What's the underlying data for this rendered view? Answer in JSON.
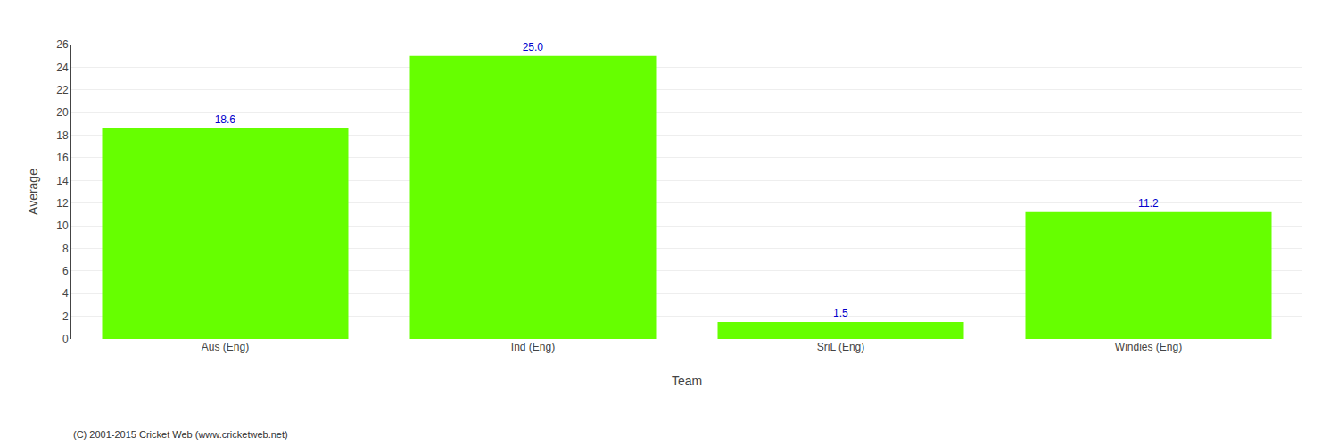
{
  "chart_data": {
    "type": "bar",
    "xlabel": "Team",
    "ylabel": "Average",
    "categories": [
      "Aus (Eng)",
      "Ind (Eng)",
      "SriL (Eng)",
      "Windies (Eng)"
    ],
    "values": [
      18.6,
      25.0,
      1.5,
      11.2
    ],
    "value_labels": [
      "18.6",
      "25.0",
      "1.5",
      "11.2"
    ],
    "data_labels": true,
    "color": "#66ff00",
    "ylim": [
      0,
      26
    ],
    "yticks": [
      0,
      2,
      4,
      6,
      8,
      10,
      12,
      14,
      16,
      18,
      20,
      22,
      24,
      26
    ],
    "grid": true,
    "annotations": [
      "(C) 2001-2015 Cricket Web (www.cricketweb.net)"
    ]
  }
}
